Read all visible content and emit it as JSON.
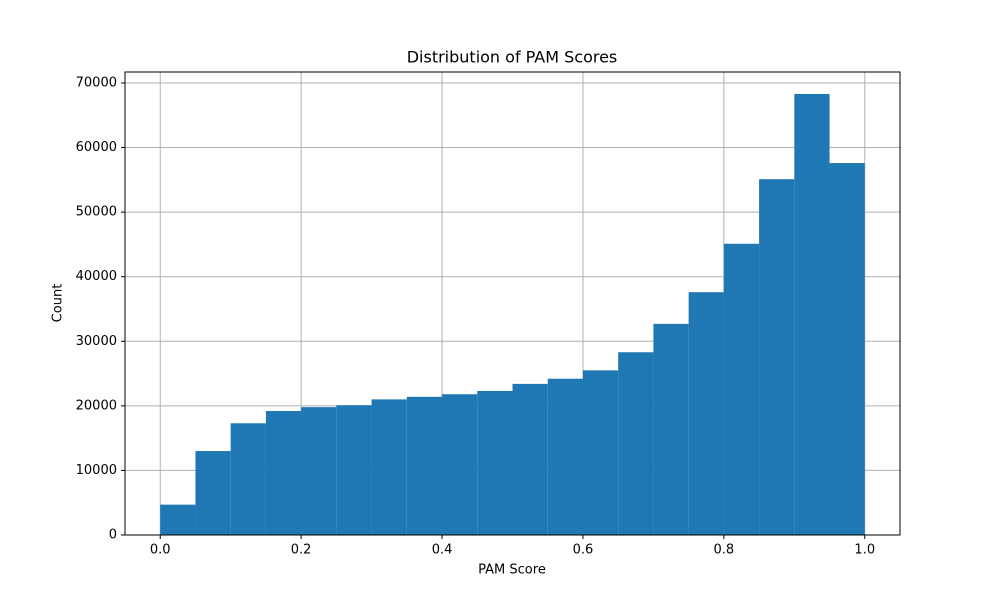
{
  "chart_data": {
    "type": "histogram",
    "title": "Distribution of PAM Scores",
    "xlabel": "PAM Score",
    "ylabel": "Count",
    "bins": [
      0,
      0.05,
      0.1,
      0.15,
      0.2,
      0.25,
      0.3,
      0.35,
      0.4,
      0.45,
      0.5,
      0.55,
      0.6,
      0.65,
      0.7,
      0.75,
      0.8,
      0.85,
      0.9,
      0.95,
      1.0
    ],
    "values": [
      4700,
      13000,
      17300,
      19200,
      19800,
      20100,
      21000,
      21400,
      21800,
      22300,
      23400,
      24200,
      25500,
      28300,
      32700,
      37600,
      45100,
      55100,
      68300,
      57600
    ],
    "color": "#1f77b4",
    "xlim": [
      -0.05,
      1.05
    ],
    "ylim": [
      0,
      71700
    ],
    "xticks": [
      {
        "value": 0,
        "label": "0.0"
      },
      0.2,
      0.4,
      0.6,
      0.8,
      {
        "value": 1,
        "label": "1.0"
      }
    ],
    "yticks": [
      0,
      10000,
      20000,
      30000,
      40000,
      50000,
      60000,
      70000
    ],
    "grid": true
  }
}
